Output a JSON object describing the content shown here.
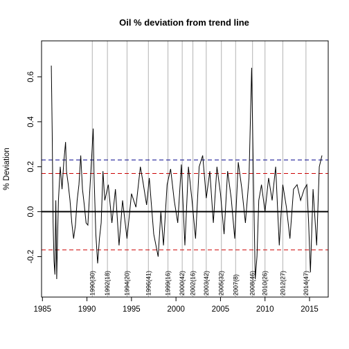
{
  "chart_data": {
    "type": "line",
    "title": "Oil  % deviation from trend line",
    "xlabel": "",
    "ylabel": "% Deviation",
    "xlim": [
      1984.9,
      2017.1
    ],
    "ylim": [
      -0.38,
      0.76
    ],
    "x_ticks": [
      1985,
      1990,
      1995,
      2000,
      2005,
      2010,
      2015
    ],
    "y_ticks": [
      -0.2,
      0.0,
      0.2,
      0.4,
      0.6
    ],
    "y_tick_labels": [
      "-0.2",
      "0.0",
      "0.2",
      "0.4",
      "0.6"
    ],
    "hlines": [
      {
        "y": 0.0,
        "color": "#000000",
        "style": "solid"
      },
      {
        "y": 0.23,
        "color": "#00008b",
        "style": "dashed"
      },
      {
        "y": 0.17,
        "color": "#cc0000",
        "style": "dashed"
      },
      {
        "y": -0.17,
        "color": "#cc0000",
        "style": "dashed"
      }
    ],
    "vlines": [
      {
        "x": 1990.6,
        "label": "1990(30)"
      },
      {
        "x": 1992.3,
        "label": "1992(18)"
      },
      {
        "x": 1994.5,
        "label": "1994(20)"
      },
      {
        "x": 1996.9,
        "label": "1996(41)"
      },
      {
        "x": 1999.1,
        "label": "1999(16)"
      },
      {
        "x": 2000.7,
        "label": "2000(42)"
      },
      {
        "x": 2001.9,
        "label": "2002(16)"
      },
      {
        "x": 2003.4,
        "label": "2003(42)"
      },
      {
        "x": 2005.1,
        "label": "2005(32)"
      },
      {
        "x": 2006.7,
        "label": "2007(8)"
      },
      {
        "x": 2008.6,
        "label": "2008(46)"
      },
      {
        "x": 2010.0,
        "label": "2010(26)"
      },
      {
        "x": 2012.0,
        "label": "2012(27)"
      },
      {
        "x": 2014.6,
        "label": "2014(47)"
      }
    ],
    "series": [
      {
        "color": "#000000",
        "x": [
          1986.0,
          1986.1,
          1986.2,
          1986.3,
          1986.4,
          1986.5,
          1986.6,
          1986.7,
          1986.8,
          1987.0,
          1987.2,
          1987.4,
          1987.6,
          1987.7,
          1987.9,
          1988.1,
          1988.3,
          1988.5,
          1988.7,
          1988.9,
          1989.1,
          1989.3,
          1989.5,
          1989.7,
          1989.9,
          1990.1,
          1990.3,
          1990.5,
          1990.7,
          1990.8,
          1991.0,
          1991.2,
          1991.4,
          1991.6,
          1991.8,
          1992.0,
          1992.4,
          1992.8,
          1993.2,
          1993.6,
          1994.0,
          1994.5,
          1995.0,
          1995.5,
          1996.0,
          1996.3,
          1996.7,
          1997.0,
          1997.5,
          1998.0,
          1998.3,
          1998.6,
          1999.0,
          1999.4,
          1999.8,
          2000.2,
          2000.6,
          2001.0,
          2001.4,
          2001.8,
          2002.2,
          2002.6,
          2003.0,
          2003.4,
          2003.8,
          2004.2,
          2004.6,
          2005.0,
          2005.4,
          2005.8,
          2006.2,
          2006.6,
          2007.0,
          2007.4,
          2007.8,
          2008.2,
          2008.5,
          2008.7,
          2008.9,
          2009.1,
          2009.3,
          2009.6,
          2010.0,
          2010.4,
          2010.8,
          2011.2,
          2011.6,
          2012.0,
          2012.4,
          2012.8,
          2013.2,
          2013.6,
          2014.0,
          2014.4,
          2014.7,
          2014.9,
          2015.1,
          2015.4,
          2015.8,
          2016.1,
          2016.4
        ],
        "values": [
          0.65,
          0.35,
          -0.05,
          -0.22,
          -0.28,
          0.05,
          -0.3,
          -0.12,
          0.05,
          0.2,
          0.1,
          0.22,
          0.31,
          0.18,
          0.12,
          0.05,
          -0.05,
          -0.12,
          -0.06,
          0.05,
          0.12,
          0.25,
          0.1,
          0.03,
          -0.05,
          -0.06,
          0.08,
          0.22,
          0.37,
          0.15,
          -0.1,
          -0.23,
          -0.12,
          -0.05,
          0.18,
          0.05,
          0.12,
          -0.05,
          0.1,
          -0.15,
          0.05,
          -0.12,
          0.08,
          0.02,
          0.2,
          0.13,
          0.03,
          0.15,
          -0.1,
          -0.2,
          0.0,
          -0.15,
          0.12,
          0.19,
          0.05,
          -0.05,
          0.21,
          -0.15,
          0.2,
          0.05,
          -0.12,
          0.2,
          0.25,
          0.06,
          0.18,
          -0.05,
          0.2,
          0.08,
          -0.1,
          0.18,
          0.06,
          -0.12,
          0.22,
          0.1,
          -0.05,
          0.15,
          0.64,
          0.15,
          -0.3,
          -0.2,
          0.05,
          0.12,
          0.0,
          0.15,
          0.05,
          0.2,
          -0.15,
          0.12,
          0.02,
          -0.12,
          0.1,
          0.12,
          0.05,
          0.1,
          0.12,
          -0.05,
          -0.27,
          0.1,
          -0.15,
          0.2,
          0.25
        ]
      }
    ],
    "grid": false,
    "legend": "none"
  }
}
